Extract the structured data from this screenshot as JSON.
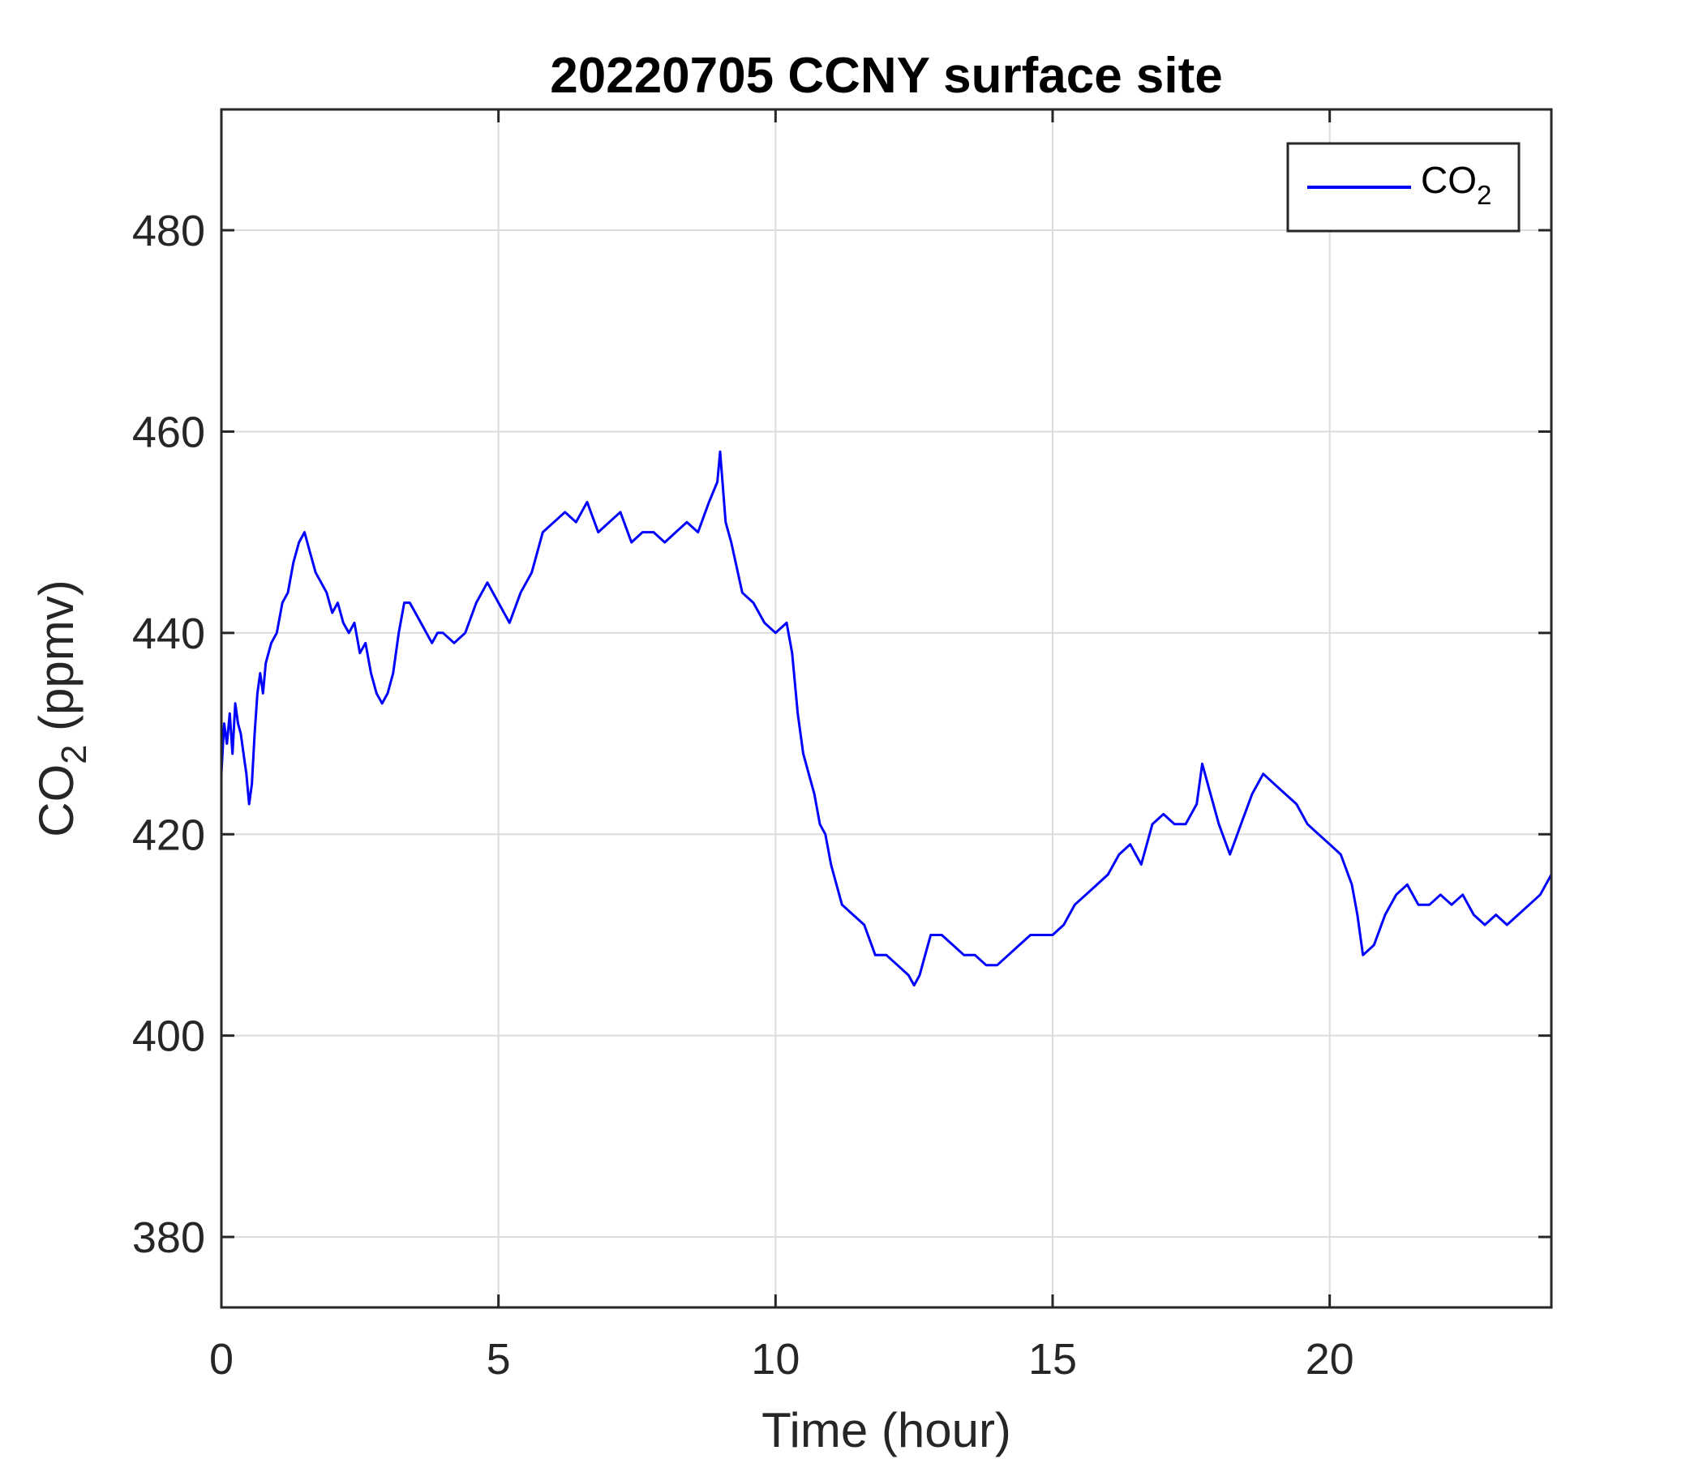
{
  "chart_data": {
    "type": "line",
    "title": "20220705 CCNY surface site",
    "xlabel": "Time (hour)",
    "ylabel": {
      "main": "CO",
      "sub": "2",
      "suffix": " (ppmv)"
    },
    "xlim": [
      0,
      24
    ],
    "ylim": [
      373,
      492
    ],
    "x_ticks": [
      0,
      5,
      10,
      15,
      20
    ],
    "y_ticks": [
      380,
      400,
      420,
      440,
      460,
      480
    ],
    "grid": true,
    "legend": {
      "placement": "top-right",
      "entries": [
        {
          "main": "CO",
          "sub": "2"
        }
      ]
    },
    "series": [
      {
        "color": "#0000ff",
        "x": [
          0,
          0.05,
          0.1,
          0.15,
          0.2,
          0.25,
          0.3,
          0.35,
          0.4,
          0.45,
          0.5,
          0.55,
          0.6,
          0.65,
          0.7,
          0.75,
          0.8,
          0.9,
          1.0,
          1.1,
          1.2,
          1.3,
          1.4,
          1.5,
          1.6,
          1.7,
          1.8,
          1.9,
          2.0,
          2.1,
          2.2,
          2.3,
          2.4,
          2.5,
          2.6,
          2.7,
          2.8,
          2.9,
          3.0,
          3.1,
          3.2,
          3.3,
          3.4,
          3.5,
          3.6,
          3.7,
          3.8,
          3.9,
          4.0,
          4.2,
          4.4,
          4.6,
          4.8,
          5.0,
          5.2,
          5.4,
          5.6,
          5.8,
          6.0,
          6.2,
          6.4,
          6.6,
          6.8,
          7.0,
          7.2,
          7.4,
          7.6,
          7.8,
          8.0,
          8.2,
          8.4,
          8.6,
          8.8,
          8.95,
          9.0,
          9.1,
          9.2,
          9.4,
          9.6,
          9.8,
          10.0,
          10.2,
          10.3,
          10.4,
          10.5,
          10.6,
          10.7,
          10.8,
          10.9,
          11.0,
          11.2,
          11.4,
          11.6,
          11.8,
          12.0,
          12.2,
          12.4,
          12.5,
          12.6,
          12.7,
          12.8,
          13.0,
          13.2,
          13.4,
          13.6,
          13.8,
          14.0,
          14.2,
          14.4,
          14.6,
          14.8,
          15.0,
          15.2,
          15.4,
          15.6,
          15.8,
          16.0,
          16.2,
          16.4,
          16.6,
          16.8,
          17.0,
          17.2,
          17.4,
          17.6,
          17.7,
          17.8,
          18.0,
          18.2,
          18.4,
          18.6,
          18.8,
          19.0,
          19.2,
          19.4,
          19.6,
          19.8,
          20.0,
          20.2,
          20.4,
          20.5,
          20.6,
          20.8,
          21.0,
          21.2,
          21.4,
          21.6,
          21.8,
          22.0,
          22.2,
          22.4,
          22.6,
          22.8,
          23.0,
          23.2,
          23.4,
          23.6,
          23.8,
          24.0
        ],
        "y": [
          426,
          431,
          429,
          432,
          428,
          433,
          431,
          430,
          428,
          426,
          423,
          425,
          430,
          434,
          436,
          434,
          437,
          439,
          440,
          443,
          444,
          447,
          449,
          450,
          448,
          446,
          445,
          444,
          442,
          443,
          441,
          440,
          441,
          438,
          439,
          436,
          434,
          433,
          434,
          436,
          440,
          443,
          443,
          442,
          441,
          440,
          439,
          440,
          440,
          439,
          440,
          443,
          445,
          443,
          441,
          444,
          446,
          450,
          451,
          452,
          451,
          453,
          450,
          451,
          452,
          449,
          450,
          450,
          449,
          450,
          451,
          450,
          453,
          455,
          458,
          451,
          449,
          444,
          443,
          441,
          440,
          441,
          438,
          432,
          428,
          426,
          424,
          421,
          420,
          417,
          413,
          412,
          411,
          408,
          408,
          407,
          406,
          405,
          406,
          408,
          410,
          410,
          409,
          408,
          408,
          407,
          407,
          408,
          409,
          410,
          410,
          410,
          411,
          413,
          414,
          415,
          416,
          418,
          419,
          417,
          421,
          422,
          421,
          421,
          423,
          427,
          425,
          421,
          418,
          421,
          424,
          426,
          425,
          424,
          423,
          421,
          420,
          419,
          418,
          415,
          412,
          408,
          409,
          412,
          414,
          415,
          413,
          413,
          414,
          413,
          414,
          412,
          411,
          412,
          411,
          412,
          413,
          414,
          416
        ]
      }
    ]
  }
}
